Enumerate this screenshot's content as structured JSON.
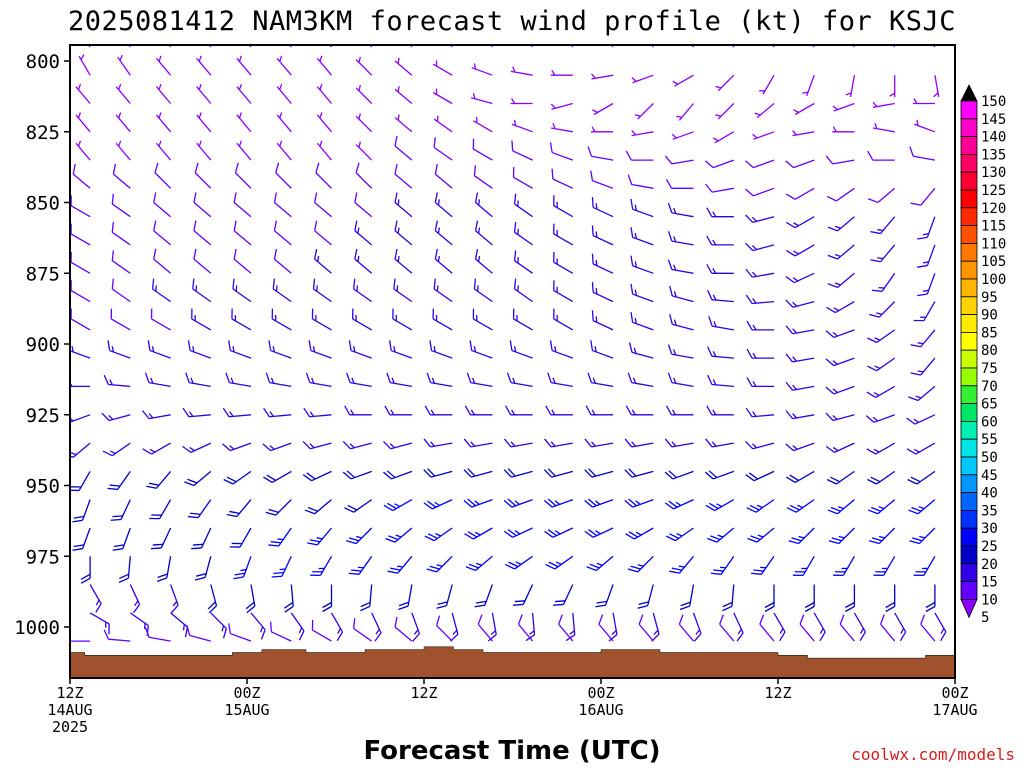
{
  "chart_data": {
    "type": "wind_barb_profile",
    "title": "2025081412 NAM3KM forecast wind profile (kt) for KSJC",
    "xlabel": "Forecast Time (UTC)",
    "ylabel": "",
    "credit": "coolwx.com/models",
    "y_ticks": [
      "800",
      "825",
      "850",
      "875",
      "900",
      "925",
      "950",
      "975",
      "1000"
    ],
    "ylim": [
      795,
      1017
    ],
    "x_ticks": [
      {
        "hour": 0,
        "line1": "12Z",
        "line2": "14AUG",
        "line3": "2025"
      },
      {
        "hour": 12,
        "line1": "00Z",
        "line2": "15AUG",
        "line3": ""
      },
      {
        "hour": 24,
        "line1": "12Z",
        "line2": "",
        "line3": ""
      },
      {
        "hour": 36,
        "line1": "00Z",
        "line2": "16AUG",
        "line3": ""
      },
      {
        "hour": 48,
        "line1": "12Z",
        "line2": "",
        "line3": ""
      },
      {
        "hour": 60,
        "line1": "00Z",
        "line2": "17AUG",
        "line3": ""
      }
    ],
    "xlim": [
      0,
      60
    ],
    "colorbar": {
      "labels": [
        "150",
        "145",
        "140",
        "135",
        "130",
        "125",
        "120",
        "115",
        "110",
        "105",
        "100",
        "95",
        "90",
        "85",
        "80",
        "75",
        "70",
        "65",
        "60",
        "55",
        "50",
        "45",
        "40",
        "35",
        "30",
        "25",
        "20",
        "15",
        "10",
        "5"
      ],
      "colors": [
        "#000000",
        "#ff00ff",
        "#ff00c8",
        "#ff0096",
        "#ff0064",
        "#ff0032",
        "#ff0000",
        "#ff2800",
        "#ff5000",
        "#ff7800",
        "#ff9600",
        "#ffb400",
        "#ffd200",
        "#ffeb00",
        "#ffff00",
        "#c8ff00",
        "#96ff00",
        "#32f032",
        "#00e664",
        "#00f0b4",
        "#00e6e6",
        "#00c8ff",
        "#0096ff",
        "#0064ff",
        "#0032ff",
        "#0000ff",
        "#0000c8",
        "#3200e6",
        "#6400ff",
        "#8c00ff"
      ]
    },
    "terrain": {
      "color": "#a0522d",
      "surface_pressure_hours": [
        0,
        1,
        4,
        9,
        11,
        13,
        16,
        20,
        24,
        26,
        28,
        34,
        36,
        40,
        48,
        50,
        52,
        58,
        60
      ],
      "surface_pressure_mb": [
        1009,
        1010,
        1010,
        1010,
        1009,
        1008,
        1009,
        1008,
        1007,
        1008,
        1009,
        1009,
        1008,
        1009,
        1010,
        1011,
        1011,
        1010,
        1010
      ]
    },
    "levels_mb": [
      795,
      805,
      815,
      825,
      835,
      845,
      855,
      865,
      875,
      885,
      895,
      905,
      915,
      925,
      935,
      945,
      955,
      965,
      975,
      985,
      995,
      1005
    ],
    "wind_direction_deg": [
      [
        320,
        320,
        320,
        320,
        320,
        320,
        320,
        320,
        320,
        320,
        320,
        320,
        320,
        320,
        320,
        320,
        320,
        320,
        320,
        320,
        320,
        320
      ],
      [
        330,
        325,
        320,
        320,
        320,
        320,
        320,
        315,
        310,
        300,
        290,
        280,
        270,
        260,
        250,
        240,
        225,
        210,
        200,
        190,
        180,
        170
      ],
      [
        320,
        320,
        320,
        320,
        320,
        320,
        320,
        315,
        310,
        300,
        285,
        270,
        255,
        240,
        225,
        220,
        225,
        230,
        240,
        250,
        260,
        270
      ],
      [
        320,
        320,
        320,
        320,
        320,
        320,
        320,
        315,
        310,
        305,
        300,
        290,
        280,
        270,
        260,
        250,
        240,
        250,
        260,
        270,
        280,
        290
      ],
      [
        320,
        320,
        320,
        320,
        320,
        320,
        320,
        315,
        310,
        305,
        300,
        295,
        290,
        280,
        270,
        260,
        250,
        250,
        250,
        260,
        270,
        280
      ],
      [
        310,
        310,
        315,
        315,
        315,
        315,
        315,
        315,
        310,
        310,
        305,
        300,
        295,
        290,
        280,
        270,
        260,
        250,
        240,
        235,
        230,
        220
      ],
      [
        300,
        305,
        310,
        310,
        310,
        310,
        310,
        310,
        310,
        310,
        310,
        305,
        300,
        295,
        290,
        280,
        270,
        255,
        240,
        230,
        220,
        200
      ],
      [
        300,
        305,
        310,
        310,
        310,
        310,
        310,
        310,
        310,
        310,
        310,
        305,
        300,
        295,
        290,
        280,
        270,
        255,
        240,
        230,
        220,
        200
      ],
      [
        300,
        305,
        310,
        310,
        310,
        310,
        310,
        310,
        310,
        310,
        310,
        305,
        300,
        295,
        290,
        280,
        270,
        260,
        245,
        230,
        215,
        200
      ],
      [
        300,
        305,
        305,
        305,
        305,
        305,
        305,
        305,
        305,
        305,
        305,
        305,
        300,
        295,
        290,
        285,
        275,
        265,
        255,
        240,
        225,
        210
      ],
      [
        300,
        300,
        300,
        300,
        300,
        300,
        300,
        300,
        300,
        300,
        300,
        300,
        300,
        295,
        290,
        285,
        280,
        270,
        260,
        250,
        235,
        220
      ],
      [
        290,
        290,
        290,
        290,
        290,
        290,
        290,
        290,
        290,
        290,
        290,
        290,
        290,
        290,
        285,
        280,
        275,
        270,
        260,
        250,
        235,
        220
      ],
      [
        270,
        275,
        280,
        280,
        280,
        280,
        280,
        280,
        280,
        280,
        280,
        280,
        280,
        280,
        280,
        280,
        275,
        270,
        260,
        250,
        240,
        230
      ],
      [
        250,
        255,
        260,
        265,
        265,
        265,
        265,
        270,
        270,
        270,
        270,
        270,
        270,
        270,
        270,
        270,
        270,
        265,
        260,
        255,
        250,
        245
      ],
      [
        230,
        235,
        240,
        245,
        250,
        250,
        255,
        255,
        255,
        260,
        260,
        260,
        260,
        260,
        260,
        260,
        260,
        255,
        250,
        245,
        240,
        240
      ],
      [
        210,
        215,
        220,
        230,
        235,
        240,
        245,
        250,
        250,
        255,
        255,
        255,
        255,
        255,
        255,
        250,
        250,
        245,
        240,
        235,
        235,
        235
      ],
      [
        200,
        205,
        210,
        215,
        220,
        225,
        230,
        235,
        240,
        245,
        250,
        250,
        250,
        250,
        250,
        245,
        240,
        235,
        235,
        230,
        230,
        230
      ],
      [
        200,
        200,
        205,
        205,
        210,
        215,
        220,
        225,
        230,
        235,
        240,
        245,
        245,
        245,
        240,
        235,
        230,
        230,
        225,
        225,
        225,
        225
      ],
      [
        180,
        185,
        190,
        195,
        200,
        205,
        210,
        215,
        220,
        225,
        230,
        235,
        235,
        230,
        225,
        220,
        215,
        215,
        210,
        210,
        210,
        210
      ],
      [
        150,
        155,
        160,
        165,
        170,
        175,
        180,
        185,
        190,
        195,
        200,
        205,
        205,
        200,
        195,
        190,
        185,
        180,
        180,
        180,
        180,
        180
      ],
      [
        120,
        125,
        130,
        135,
        140,
        145,
        150,
        155,
        160,
        165,
        170,
        175,
        175,
        170,
        165,
        160,
        155,
        150,
        150,
        150,
        150,
        150
      ],
      [
        270,
        275,
        280,
        285,
        290,
        295,
        300,
        305,
        310,
        315,
        320,
        320,
        320,
        320,
        320,
        320,
        320,
        320,
        320,
        320,
        320,
        320
      ]
    ],
    "wind_speed_kt": [
      [
        5,
        5,
        5,
        5,
        5,
        5,
        5,
        5,
        5,
        5,
        5,
        5,
        5,
        5,
        5,
        5,
        5,
        5,
        5,
        5,
        5,
        5
      ],
      [
        5,
        5,
        5,
        5,
        5,
        5,
        5,
        5,
        5,
        5,
        5,
        5,
        5,
        5,
        5,
        5,
        5,
        5,
        5,
        5,
        5,
        5
      ],
      [
        5,
        5,
        5,
        5,
        5,
        5,
        5,
        5,
        5,
        5,
        5,
        5,
        5,
        5,
        5,
        5,
        5,
        5,
        5,
        5,
        5,
        5
      ],
      [
        5,
        5,
        5,
        5,
        5,
        5,
        5,
        5,
        5,
        5,
        5,
        5,
        5,
        5,
        5,
        5,
        5,
        5,
        5,
        5,
        5,
        5
      ],
      [
        5,
        5,
        5,
        5,
        5,
        5,
        5,
        5,
        10,
        10,
        10,
        10,
        10,
        10,
        10,
        10,
        10,
        10,
        10,
        10,
        10,
        10
      ],
      [
        10,
        10,
        10,
        10,
        10,
        10,
        10,
        10,
        10,
        10,
        10,
        10,
        10,
        10,
        10,
        10,
        10,
        10,
        10,
        10,
        10,
        10
      ],
      [
        10,
        10,
        10,
        10,
        10,
        10,
        10,
        10,
        15,
        15,
        15,
        15,
        15,
        15,
        15,
        15,
        15,
        15,
        15,
        15,
        15,
        15
      ],
      [
        10,
        10,
        10,
        10,
        10,
        10,
        10,
        15,
        15,
        15,
        15,
        15,
        15,
        15,
        15,
        15,
        15,
        15,
        15,
        15,
        15,
        15
      ],
      [
        10,
        10,
        10,
        10,
        10,
        10,
        15,
        15,
        15,
        15,
        15,
        15,
        15,
        15,
        15,
        15,
        15,
        15,
        15,
        15,
        15,
        15
      ],
      [
        10,
        10,
        15,
        15,
        15,
        15,
        15,
        15,
        15,
        15,
        15,
        15,
        15,
        15,
        15,
        15,
        15,
        15,
        15,
        15,
        15,
        15
      ],
      [
        10,
        10,
        10,
        15,
        15,
        15,
        15,
        15,
        15,
        15,
        15,
        15,
        15,
        15,
        15,
        15,
        15,
        15,
        15,
        15,
        15,
        15
      ],
      [
        15,
        15,
        15,
        15,
        15,
        15,
        15,
        15,
        15,
        15,
        15,
        15,
        15,
        15,
        15,
        15,
        15,
        15,
        15,
        15,
        15,
        15
      ],
      [
        15,
        15,
        15,
        15,
        15,
        15,
        15,
        15,
        15,
        15,
        15,
        15,
        15,
        15,
        15,
        15,
        15,
        15,
        15,
        15,
        15,
        15
      ],
      [
        15,
        15,
        15,
        15,
        15,
        15,
        15,
        15,
        15,
        15,
        15,
        15,
        15,
        15,
        15,
        15,
        15,
        15,
        15,
        15,
        15,
        15
      ],
      [
        15,
        15,
        15,
        15,
        15,
        15,
        15,
        15,
        15,
        15,
        15,
        15,
        15,
        15,
        15,
        15,
        15,
        15,
        15,
        15,
        15,
        15
      ],
      [
        20,
        20,
        20,
        20,
        20,
        20,
        20,
        20,
        20,
        20,
        20,
        20,
        20,
        20,
        20,
        20,
        20,
        20,
        20,
        20,
        20,
        20
      ],
      [
        20,
        20,
        20,
        20,
        20,
        20,
        20,
        20,
        25,
        25,
        25,
        25,
        25,
        25,
        25,
        25,
        25,
        25,
        25,
        25,
        25,
        25
      ],
      [
        20,
        20,
        20,
        20,
        20,
        25,
        25,
        25,
        25,
        25,
        25,
        25,
        25,
        25,
        25,
        25,
        25,
        25,
        25,
        25,
        25,
        25
      ],
      [
        20,
        20,
        20,
        20,
        25,
        25,
        25,
        25,
        25,
        25,
        25,
        25,
        25,
        25,
        25,
        25,
        25,
        25,
        25,
        25,
        25,
        25
      ],
      [
        15,
        15,
        15,
        20,
        20,
        20,
        20,
        20,
        20,
        20,
        20,
        20,
        20,
        20,
        20,
        20,
        20,
        20,
        20,
        20,
        20,
        20
      ],
      [
        15,
        15,
        15,
        15,
        15,
        15,
        15,
        15,
        15,
        15,
        15,
        15,
        15,
        15,
        15,
        15,
        15,
        15,
        15,
        15,
        15,
        15
      ],
      [
        10,
        10,
        10,
        10,
        10,
        10,
        10,
        10,
        10,
        10,
        10,
        10,
        10,
        10,
        10,
        10,
        10,
        10,
        10,
        10,
        10,
        10
      ]
    ],
    "wind_speed_kt_note": ""
  }
}
